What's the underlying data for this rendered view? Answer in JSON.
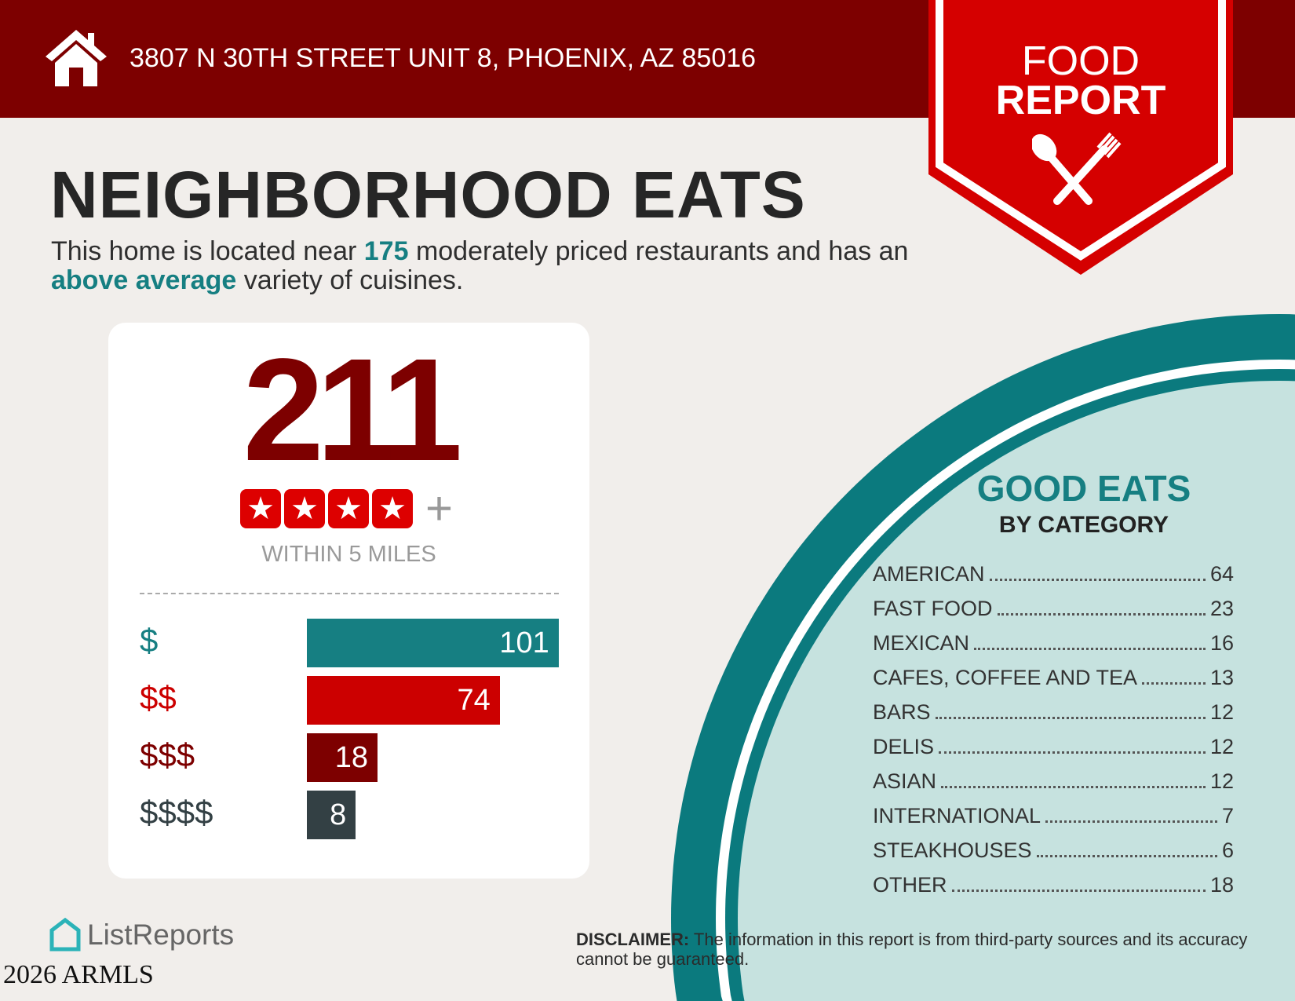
{
  "header": {
    "address": "3807 N 30TH STREET UNIT 8, PHOENIX, AZ 85016",
    "icon": "house-icon"
  },
  "banner": {
    "line1": "FOOD",
    "line2": "REPORT",
    "icon": "spoon-fork-icon"
  },
  "title": "NEIGHBORHOOD EATS",
  "intro": {
    "pre": "This home is located near ",
    "count": "175",
    "mid": " moderately priced restaurants and has an ",
    "variety": "above average",
    "post": " variety of cuisines."
  },
  "summary": {
    "total": "211",
    "stars": 4,
    "plus": "+",
    "within": "WITHIN 5 MILES"
  },
  "chart_data": {
    "type": "bar",
    "categories": [
      "$",
      "$$",
      "$$$",
      "$$$$"
    ],
    "values": [
      101,
      74,
      18,
      8
    ],
    "colors": [
      "#167f82",
      "#cc0000",
      "#7d0000",
      "#334044"
    ]
  },
  "categories": {
    "title": "GOOD EATS",
    "subtitle": "BY CATEGORY",
    "items": [
      {
        "label": "AMERICAN",
        "count": "64"
      },
      {
        "label": "FAST FOOD",
        "count": "23"
      },
      {
        "label": "MEXICAN",
        "count": "16"
      },
      {
        "label": "CAFES, COFFEE AND TEA",
        "count": "13"
      },
      {
        "label": "BARS",
        "count": "12"
      },
      {
        "label": "DELIS",
        "count": "12"
      },
      {
        "label": "ASIAN",
        "count": "12"
      },
      {
        "label": "INTERNATIONAL",
        "count": "7"
      },
      {
        "label": "STEAKHOUSES",
        "count": "6"
      },
      {
        "label": "OTHER",
        "count": "18"
      }
    ]
  },
  "disclaimer": {
    "label": "DISCLAIMER:",
    "text": " The information in this report is from third-party sources and its accuracy cannot be guaranteed."
  },
  "footer": {
    "logo": "ListReports",
    "watermark": "2026 ARMLS"
  },
  "colors": {
    "dark_red": "#7d0000",
    "red": "#d50000",
    "teal": "#0b7a7e",
    "light_teal": "#c6e2df"
  }
}
